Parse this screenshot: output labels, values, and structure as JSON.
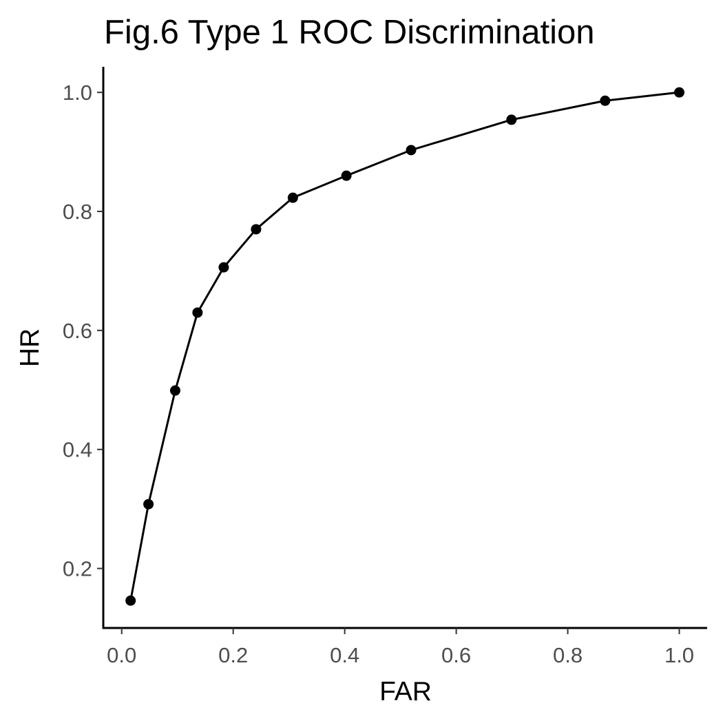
{
  "chart_data": {
    "type": "line",
    "title": "Fig.6 Type 1 ROC Discrimination",
    "xlabel": "FAR",
    "ylabel": "HR",
    "xlim": [
      -0.033,
      1.05
    ],
    "ylim": [
      0.1,
      1.043
    ],
    "xticks": [
      0.0,
      0.2,
      0.4,
      0.6,
      0.8,
      1.0
    ],
    "xtick_labels": [
      "0.0",
      "0.2",
      "0.4",
      "0.6",
      "0.8",
      "1.0"
    ],
    "yticks": [
      0.2,
      0.4,
      0.6,
      0.8,
      1.0
    ],
    "ytick_labels": [
      "0.2",
      "0.4",
      "0.6",
      "0.8",
      "1.0"
    ],
    "grid": false,
    "markers": true,
    "series": [
      {
        "color": "#000000",
        "x": [
          0.016,
          0.048,
          0.096,
          0.136,
          0.183,
          0.241,
          0.307,
          0.403,
          0.519,
          0.699,
          0.867,
          1.0
        ],
        "y": [
          0.146,
          0.308,
          0.499,
          0.63,
          0.706,
          0.77,
          0.823,
          0.86,
          0.903,
          0.954,
          0.986,
          1.0
        ]
      }
    ]
  }
}
